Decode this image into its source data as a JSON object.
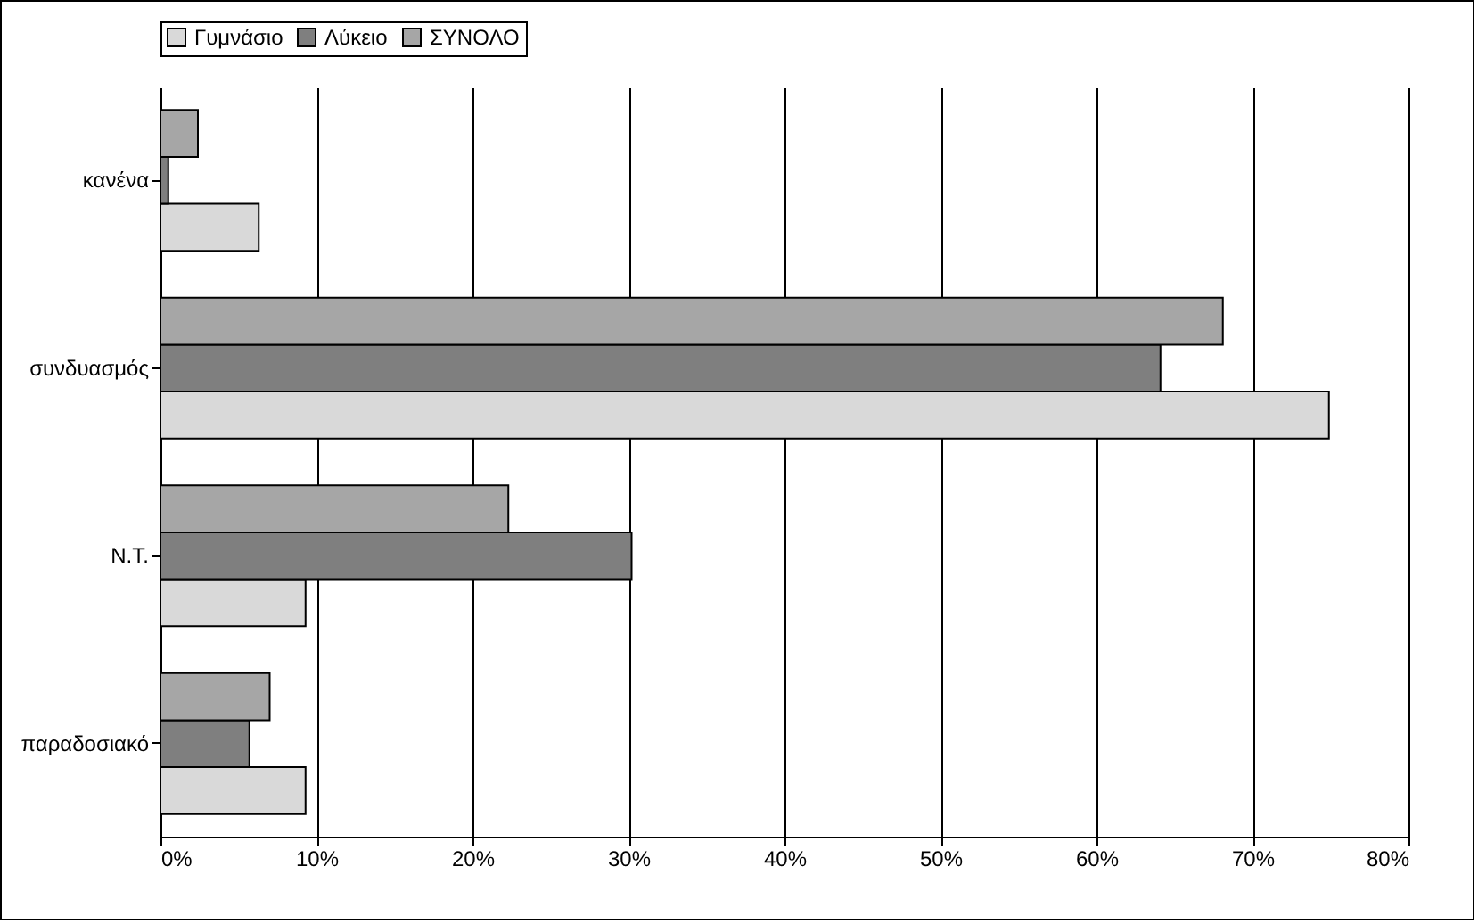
{
  "chart_data": {
    "type": "bar",
    "orientation": "horizontal",
    "categories": [
      "κανένα",
      "συνδυασμός",
      "Ν.Τ.",
      "παραδοσιακό"
    ],
    "series": [
      {
        "name": "Γυμνάσιο",
        "color": "#d9d9d9",
        "values": [
          6.3,
          74.9,
          9.3,
          9.3
        ]
      },
      {
        "name": "Λύκειο",
        "color": "#7f7f7f",
        "values": [
          0.5,
          64.1,
          30.2,
          5.7
        ]
      },
      {
        "name": "ΣΥΝΟΛΟ",
        "color": "#a6a6a6",
        "values": [
          2.4,
          68.1,
          22.3,
          7.0
        ]
      }
    ],
    "xlim": [
      0,
      80
    ],
    "xticks": [
      {
        "value": 0,
        "label": "0%"
      },
      {
        "value": 10,
        "label": "10%"
      },
      {
        "value": 20,
        "label": "20%"
      },
      {
        "value": 30,
        "label": "30%"
      },
      {
        "value": 40,
        "label": "40%"
      },
      {
        "value": 50,
        "label": "50%"
      },
      {
        "value": 60,
        "label": "60%"
      },
      {
        "value": 70,
        "label": "70%"
      },
      {
        "value": 80,
        "label": "80%"
      }
    ],
    "grid": "x",
    "legend": "top"
  }
}
